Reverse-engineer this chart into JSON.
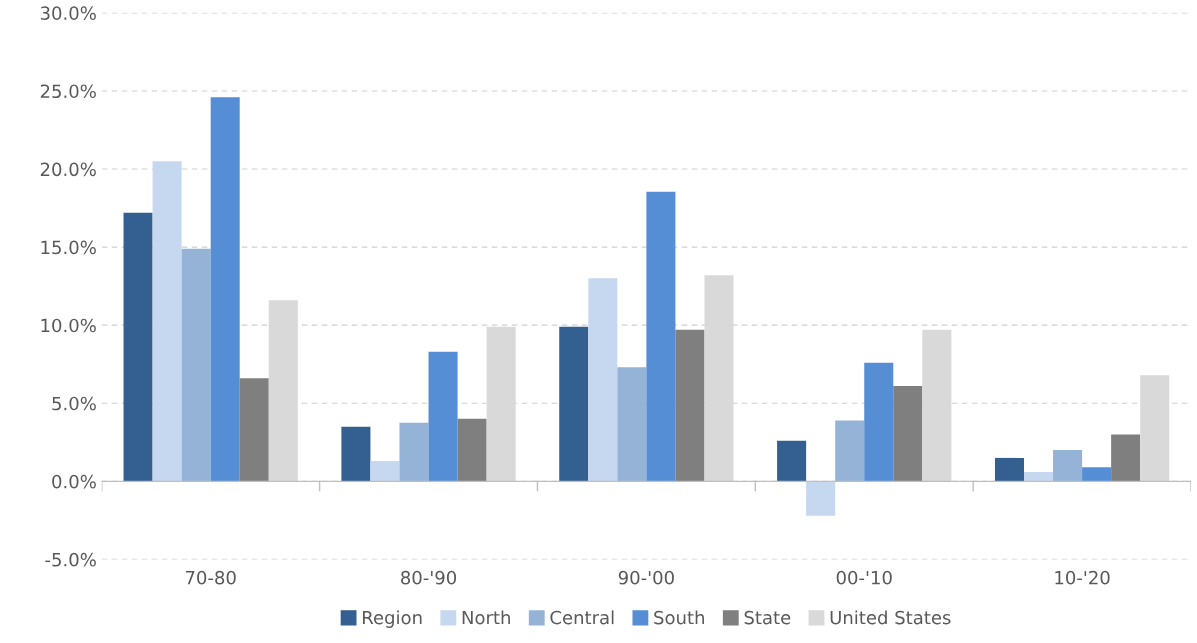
{
  "chart_data": {
    "type": "bar",
    "categories": [
      "70-80",
      "80-'90",
      "90-'00",
      "00-'10",
      "10-'20"
    ],
    "series": [
      {
        "name": "Region",
        "color": "#335f91",
        "values": [
          17.2,
          3.5,
          9.9,
          2.6,
          1.5
        ]
      },
      {
        "name": "North",
        "color": "#c6d8ef",
        "values": [
          20.5,
          1.3,
          13.0,
          -2.2,
          0.6
        ]
      },
      {
        "name": "Central",
        "color": "#95b3d7",
        "values": [
          14.9,
          3.75,
          7.3,
          3.9,
          2.0
        ]
      },
      {
        "name": "South",
        "color": "#558ed5",
        "values": [
          24.6,
          8.3,
          18.55,
          7.6,
          0.9
        ]
      },
      {
        "name": "State",
        "color": "#7f7f7f",
        "values": [
          6.6,
          4.0,
          9.7,
          6.1,
          3.0
        ]
      },
      {
        "name": "United States",
        "color": "#d9d9d9",
        "values": [
          11.6,
          9.9,
          13.2,
          9.7,
          6.8
        ]
      }
    ],
    "ylim": [
      -5,
      30
    ],
    "yticks": [
      {
        "value": -5,
        "label": "-5.0%"
      },
      {
        "value": 0,
        "label": "0.0%"
      },
      {
        "value": 5,
        "label": "5.0%"
      },
      {
        "value": 10,
        "label": "10.0%"
      },
      {
        "value": 15,
        "label": "15.0%"
      },
      {
        "value": 20,
        "label": "20.0%"
      },
      {
        "value": 25,
        "label": "25.0%"
      },
      {
        "value": 30,
        "label": "30.0%"
      }
    ],
    "grid": "y",
    "legend": "bottom"
  }
}
